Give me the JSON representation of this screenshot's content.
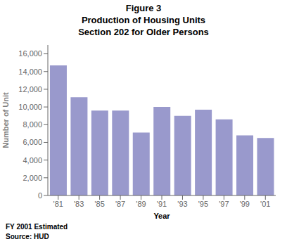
{
  "chart_data": {
    "type": "bar",
    "title": [
      "Figure 3",
      "Production of Housing Units",
      "Section 202 for Older Persons"
    ],
    "categories": [
      "'81",
      "'83",
      "'85",
      "'87",
      "'89",
      "'91",
      "'93",
      "'95",
      "'97",
      "'99",
      "'01"
    ],
    "values": [
      14700,
      11100,
      9600,
      9600,
      7100,
      10000,
      9000,
      9700,
      8600,
      6800,
      6500
    ],
    "color": "#9999cc",
    "ylabel": "Number of Unit",
    "xlabel": "Year",
    "annotations": [
      "FY 2001 Estimated",
      "Source: HUD"
    ],
    "ylim": [
      0,
      17000
    ],
    "yticks": [
      0,
      {
        "value": 2000,
        "label": "2,000"
      },
      {
        "value": 4000,
        "label": "4,000"
      },
      {
        "value": 6000,
        "label": "6,000"
      },
      {
        "value": 8000,
        "label": "8,000"
      },
      {
        "value": 10000,
        "label": "10,000"
      },
      {
        "value": 12000,
        "label": "12,000"
      },
      {
        "value": 14000,
        "label": "14,000"
      },
      {
        "value": 16000,
        "label": "16,000"
      }
    ],
    "grid": false
  }
}
